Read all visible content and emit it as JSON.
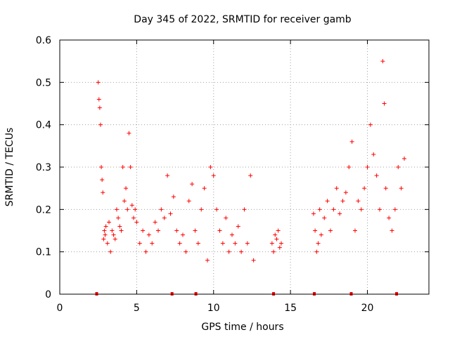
{
  "chart_data": {
    "type": "scatter",
    "title": "Day 345 of 2022, SRMTID for receiver gamb",
    "xlabel": "GPS time / hours",
    "ylabel": "SRMTID / TECUs",
    "xlim": [
      0,
      24
    ],
    "ylim": [
      0,
      0.6
    ],
    "xticks": [
      0,
      5,
      10,
      15,
      20
    ],
    "yticks": [
      0,
      0.1,
      0.2,
      0.3,
      0.4,
      0.5,
      0.6
    ],
    "grid": true,
    "marker": "+",
    "color": "#ff0000",
    "series": [
      {
        "name": "SRMTID",
        "x": [
          2.5,
          2.55,
          2.6,
          2.65,
          2.7,
          2.75,
          2.8,
          2.85,
          2.9,
          2.95,
          3.0,
          3.1,
          3.2,
          3.3,
          3.4,
          3.5,
          3.6,
          3.7,
          3.8,
          3.9,
          4.0,
          4.1,
          4.2,
          4.3,
          4.4,
          4.5,
          4.6,
          4.7,
          4.8,
          4.9,
          5.0,
          5.2,
          5.4,
          5.6,
          5.8,
          6.0,
          6.2,
          6.4,
          6.6,
          6.8,
          7.0,
          7.2,
          7.4,
          7.6,
          7.8,
          8.0,
          8.2,
          8.4,
          8.6,
          8.8,
          9.0,
          9.2,
          9.4,
          9.6,
          9.8,
          10.0,
          10.2,
          10.4,
          10.6,
          10.8,
          11.0,
          11.2,
          11.4,
          11.6,
          11.8,
          12.0,
          12.2,
          12.4,
          12.6,
          13.8,
          13.9,
          14.0,
          14.1,
          14.2,
          14.3,
          14.4,
          16.5,
          16.6,
          16.7,
          16.8,
          16.9,
          17.0,
          17.2,
          17.4,
          17.6,
          17.8,
          18.0,
          18.2,
          18.4,
          18.6,
          18.8,
          19.0,
          19.2,
          19.4,
          19.6,
          19.8,
          20.0,
          20.2,
          20.4,
          20.6,
          20.8,
          21.0,
          21.1,
          21.2,
          21.4,
          21.6,
          21.8,
          22.0,
          22.2,
          22.4
        ],
        "y": [
          0.5,
          0.46,
          0.44,
          0.4,
          0.3,
          0.27,
          0.24,
          0.13,
          0.15,
          0.14,
          0.16,
          0.12,
          0.17,
          0.1,
          0.15,
          0.14,
          0.13,
          0.2,
          0.18,
          0.16,
          0.15,
          0.3,
          0.22,
          0.25,
          0.2,
          0.38,
          0.3,
          0.21,
          0.18,
          0.2,
          0.17,
          0.12,
          0.15,
          0.1,
          0.14,
          0.12,
          0.17,
          0.15,
          0.2,
          0.18,
          0.28,
          0.19,
          0.23,
          0.15,
          0.12,
          0.14,
          0.1,
          0.22,
          0.26,
          0.15,
          0.12,
          0.2,
          0.25,
          0.08,
          0.3,
          0.28,
          0.2,
          0.15,
          0.12,
          0.18,
          0.1,
          0.14,
          0.12,
          0.16,
          0.1,
          0.2,
          0.12,
          0.28,
          0.08,
          0.12,
          0.1,
          0.14,
          0.13,
          0.15,
          0.11,
          0.12,
          0.19,
          0.15,
          0.1,
          0.12,
          0.2,
          0.14,
          0.18,
          0.22,
          0.15,
          0.2,
          0.25,
          0.19,
          0.22,
          0.24,
          0.3,
          0.36,
          0.15,
          0.22,
          0.2,
          0.25,
          0.3,
          0.4,
          0.33,
          0.28,
          0.2,
          0.55,
          0.45,
          0.25,
          0.18,
          0.15,
          0.2,
          0.3,
          0.25,
          0.32
        ]
      }
    ],
    "gap_markers_x": [
      2.4,
      7.3,
      8.85,
      13.9,
      16.55,
      18.95,
      21.9
    ]
  }
}
